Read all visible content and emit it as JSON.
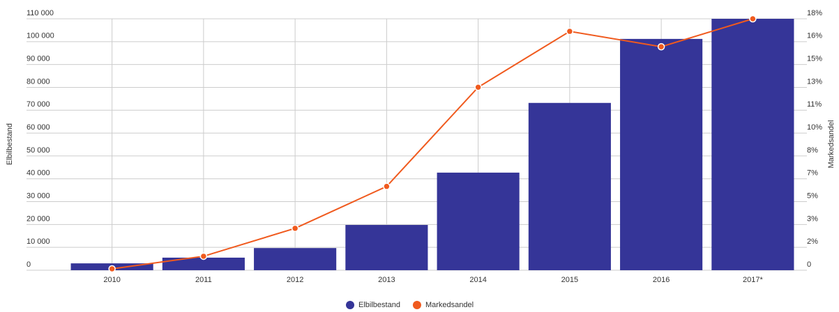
{
  "chart_data": {
    "type": "bar-line",
    "categories": [
      "2010",
      "2011",
      "2012",
      "2013",
      "2014",
      "2015",
      "2016",
      "2017*"
    ],
    "ylabel": "Elbilbestand",
    "y2label": "Markedsandel",
    "series": [
      {
        "name": "Elbilbestand",
        "color": "#353598",
        "type": "bar",
        "values": [
          3000,
          5500,
          9700,
          19800,
          42700,
          73200,
          101200,
          110000
        ]
      },
      {
        "name": "Markedsandel",
        "color": "#f05a1e",
        "type": "line",
        "axis": "y2",
        "values": [
          0.1,
          1.0,
          3.0,
          6.0,
          13.1,
          17.1,
          16.0,
          18.0
        ]
      }
    ],
    "ylim": [
      0,
      110000
    ],
    "yticks": [
      0,
      {
        "value": 10000,
        "label": "10 000"
      },
      {
        "value": 20000,
        "label": "20 000"
      },
      {
        "value": 30000,
        "label": "30 000"
      },
      {
        "value": 40000,
        "label": "40 000"
      },
      {
        "value": 50000,
        "label": "50 000"
      },
      {
        "value": 60000,
        "label": "60 000"
      },
      {
        "value": 70000,
        "label": "70 000"
      },
      {
        "value": 80000,
        "label": "80 000"
      },
      {
        "value": 90000,
        "label": "90 000"
      },
      {
        "value": 100000,
        "label": "100 000"
      },
      {
        "value": 110000,
        "label": "110 000"
      }
    ],
    "y2lim": [
      0,
      18
    ],
    "y2ticks": [
      0,
      {
        "value": 1.636,
        "label": "2%"
      },
      {
        "value": 3.273,
        "label": "3%"
      },
      {
        "value": 4.909,
        "label": "5%"
      },
      {
        "value": 6.545,
        "label": "7%"
      },
      {
        "value": 8.182,
        "label": "8%"
      },
      {
        "value": 9.818,
        "label": "10%"
      },
      {
        "value": 11.455,
        "label": "11%"
      },
      {
        "value": 13.091,
        "label": "13%"
      },
      {
        "value": 14.727,
        "label": "15%"
      },
      {
        "value": 16.364,
        "label": "16%"
      },
      {
        "value": 18,
        "label": "18%"
      }
    ],
    "grid": true,
    "legend": "bottom"
  }
}
